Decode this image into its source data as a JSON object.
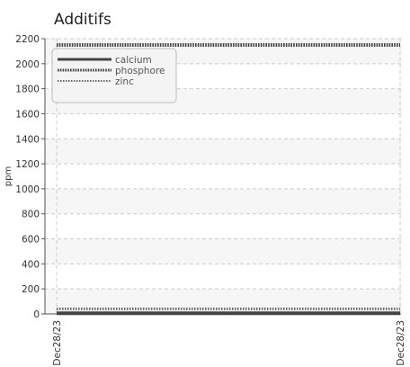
{
  "chart_data": {
    "type": "line",
    "title": "Additifs",
    "ylabel": "ppm",
    "xlabel": "",
    "ylim": [
      0,
      2200
    ],
    "yticks": [
      0,
      200,
      400,
      600,
      800,
      1000,
      1200,
      1400,
      1600,
      1800,
      2000,
      2200
    ],
    "x": [
      "Dec28/23",
      "Dec28/23"
    ],
    "series": [
      {
        "name": "calcium",
        "values": [
          5,
          5
        ],
        "color": "#444444",
        "style": "solid"
      },
      {
        "name": "phosphore",
        "values": [
          2150,
          2150
        ],
        "color": "#444444",
        "style": "dotted"
      },
      {
        "name": "zinc",
        "values": [
          40,
          40
        ],
        "color": "#666666",
        "style": "dotted-thin"
      }
    ],
    "grid": true,
    "legend_placement": "top-left",
    "colors": {
      "grid": "#cccccc",
      "band": "#f6f6f6",
      "axis": "#555555"
    }
  }
}
